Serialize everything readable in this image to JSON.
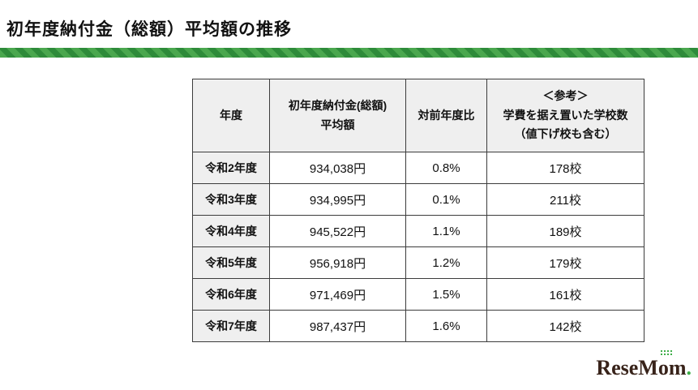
{
  "page": {
    "title": "初年度納付金（総額）平均額の推移"
  },
  "chart_data": {
    "type": "table",
    "title": "初年度納付金（総額）平均額の推移",
    "columns": [
      {
        "lines": [
          "年度"
        ]
      },
      {
        "lines": [
          "初年度納付金(総額)",
          "平均額"
        ]
      },
      {
        "lines": [
          "対前年度比"
        ]
      },
      {
        "lines": [
          "＜参考＞",
          "学費を据え置いた学校数",
          "（値下げ校も含む）"
        ]
      }
    ],
    "rows": [
      {
        "year": "令和2年度",
        "amount": "934,038円",
        "yoy": "0.8%",
        "schools": "178校"
      },
      {
        "year": "令和3年度",
        "amount": "934,995円",
        "yoy": "0.1%",
        "schools": "211校"
      },
      {
        "year": "令和4年度",
        "amount": "945,522円",
        "yoy": "1.1%",
        "schools": "189校"
      },
      {
        "year": "令和5年度",
        "amount": "956,918円",
        "yoy": "1.2%",
        "schools": "179校"
      },
      {
        "year": "令和6年度",
        "amount": "971,469円",
        "yoy": "1.5%",
        "schools": "161校"
      },
      {
        "year": "令和7年度",
        "amount": "987,437円",
        "yoy": "1.6%",
        "schools": "142校"
      }
    ]
  },
  "logo": {
    "text": "ReseMom",
    "period": "."
  }
}
